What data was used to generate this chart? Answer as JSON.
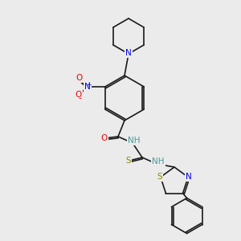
{
  "bg_color": "#ebebeb",
  "figsize": [
    3.0,
    3.0
  ],
  "dpi": 100,
  "bond_color": "#1a1a1a",
  "bond_width": 1.2,
  "font_size": 7.5,
  "colors": {
    "C": "#1a1a1a",
    "N": "#0000ee",
    "O": "#ee0000",
    "S": "#888800",
    "H": "#4a9a9a",
    "plus": "#0000ee",
    "minus": "#ee0000"
  }
}
